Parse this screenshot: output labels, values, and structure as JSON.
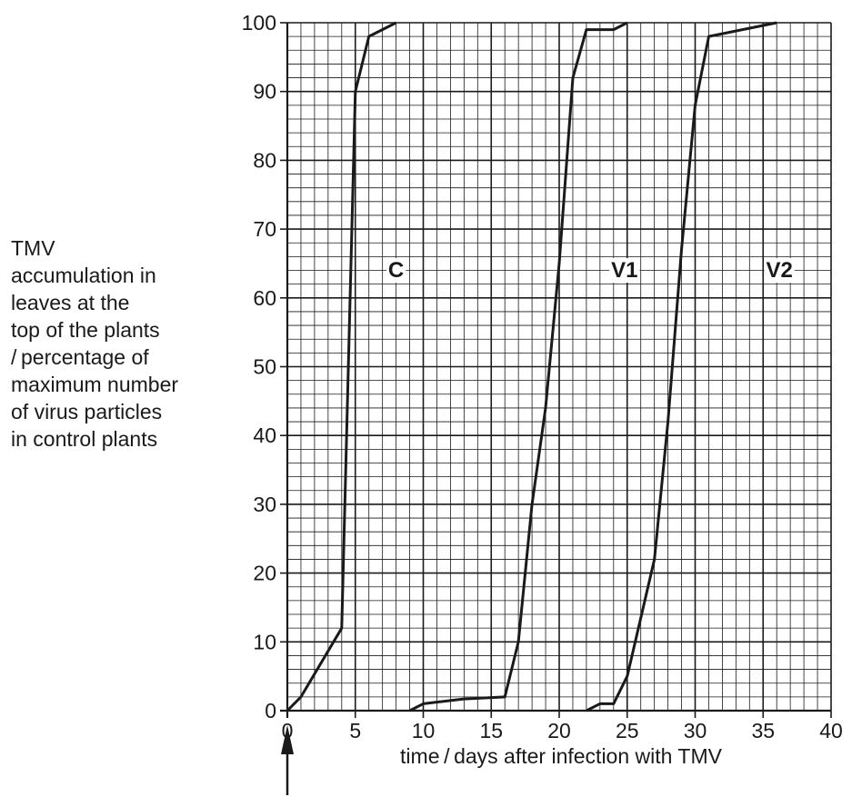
{
  "chart_data": {
    "type": "line",
    "title": "",
    "ylabel_lines": [
      "TMV",
      "accumulation in",
      "leaves at the",
      "top of the plants",
      "/ percentage of",
      "maximum number",
      "of virus particles",
      "in control plants"
    ],
    "xlabel": "time / days after infection with TMV",
    "xlim": [
      0,
      40
    ],
    "ylim": [
      0,
      100
    ],
    "x_ticks": [
      0,
      5,
      10,
      15,
      20,
      25,
      30,
      35,
      40
    ],
    "y_ticks": [
      0,
      10,
      20,
      30,
      40,
      50,
      60,
      70,
      80,
      90,
      100
    ],
    "x_tick_labels": [
      "0",
      "5",
      "10",
      "15",
      "20",
      "25",
      "30",
      "35",
      "40"
    ],
    "y_tick_labels": [
      "0",
      "10",
      "20",
      "30",
      "40",
      "50",
      "60",
      "70",
      "80",
      "90",
      "100"
    ],
    "grid": {
      "major": true,
      "minor": true,
      "minor_per_major_x": 5,
      "minor_per_major_y": 5
    },
    "annotation": {
      "type": "arrow",
      "x": 0
    },
    "series": [
      {
        "name": "C",
        "label_pos": [
          8,
          63
        ],
        "points": [
          [
            0,
            0
          ],
          [
            1,
            2
          ],
          [
            4,
            12
          ],
          [
            5,
            90
          ],
          [
            6,
            98
          ],
          [
            8,
            100
          ]
        ]
      },
      {
        "name": "V1",
        "label_pos": [
          24.8,
          63
        ],
        "points": [
          [
            9,
            0
          ],
          [
            10,
            1
          ],
          [
            13,
            1.7
          ],
          [
            16,
            2
          ],
          [
            17,
            10
          ],
          [
            18,
            30
          ],
          [
            19,
            44
          ],
          [
            20,
            65
          ],
          [
            21,
            92
          ],
          [
            22,
            99
          ],
          [
            24,
            99
          ],
          [
            25,
            100
          ]
        ]
      },
      {
        "name": "V2",
        "label_pos": [
          36.2,
          63
        ],
        "points": [
          [
            22,
            0
          ],
          [
            23,
            1
          ],
          [
            24,
            1
          ],
          [
            25,
            5
          ],
          [
            27,
            22
          ],
          [
            28,
            42
          ],
          [
            29,
            67
          ],
          [
            30,
            88
          ],
          [
            31,
            98
          ],
          [
            36,
            100
          ]
        ]
      }
    ],
    "line_color": "#1a1a1a",
    "grid_color": "#1a1a1a"
  }
}
